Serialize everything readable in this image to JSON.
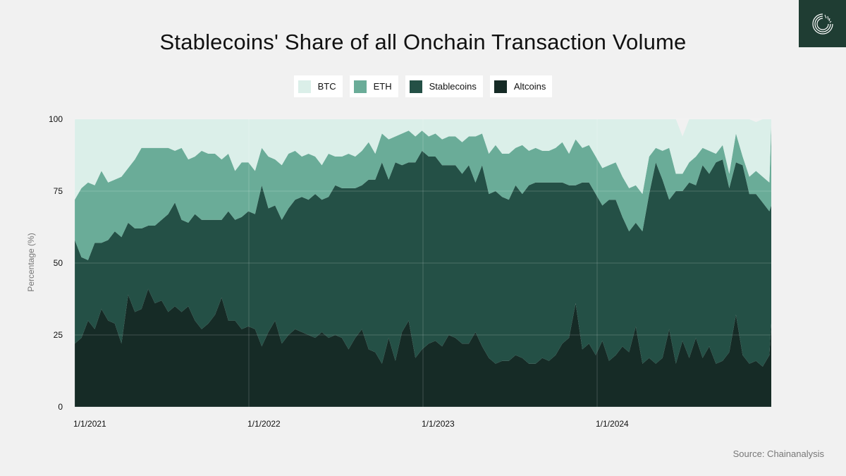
{
  "title": "Stablecoins' Share of all Onchain Transaction Volume",
  "source": "Source: Chainanalysis",
  "logo": {
    "icon": "chainalysis-logo-icon",
    "background": "#1f3d33"
  },
  "legend": [
    {
      "label": "BTC",
      "color": "#dbefe9"
    },
    {
      "label": "ETH",
      "color": "#6aac98"
    },
    {
      "label": "Stablecoins",
      "color": "#245046"
    },
    {
      "label": "Altcoins",
      "color": "#162b26"
    }
  ],
  "chart_data": {
    "type": "area",
    "stacked": true,
    "ylabel": "Percentage (%)",
    "ylim": [
      0,
      100
    ],
    "yticks": [
      "0",
      "25",
      "50",
      "75",
      "100"
    ],
    "xlim": [
      "2021-01-01",
      "2024-12-31"
    ],
    "xticks": [
      "1/1/2021",
      "1/1/2022",
      "1/1/2023",
      "1/1/2024"
    ],
    "grid": true,
    "x": [
      "2021-01-01",
      "2021-01-15",
      "2021-01-29",
      "2021-02-12",
      "2021-02-26",
      "2021-03-12",
      "2021-03-26",
      "2021-04-09",
      "2021-04-23",
      "2021-05-07",
      "2021-05-21",
      "2021-06-04",
      "2021-06-18",
      "2021-07-02",
      "2021-07-16",
      "2021-07-30",
      "2021-08-13",
      "2021-08-27",
      "2021-09-10",
      "2021-09-24",
      "2021-10-08",
      "2021-10-22",
      "2021-11-05",
      "2021-11-19",
      "2021-12-03",
      "2021-12-17",
      "2021-12-31",
      "2022-01-14",
      "2022-01-28",
      "2022-02-11",
      "2022-02-25",
      "2022-03-11",
      "2022-03-25",
      "2022-04-08",
      "2022-04-22",
      "2022-05-06",
      "2022-05-20",
      "2022-06-03",
      "2022-06-17",
      "2022-07-01",
      "2022-07-15",
      "2022-07-29",
      "2022-08-12",
      "2022-08-26",
      "2022-09-09",
      "2022-09-23",
      "2022-10-07",
      "2022-10-21",
      "2022-11-04",
      "2022-11-18",
      "2022-12-02",
      "2022-12-16",
      "2022-12-30",
      "2023-01-13",
      "2023-01-27",
      "2023-02-10",
      "2023-02-24",
      "2023-03-10",
      "2023-03-24",
      "2023-04-07",
      "2023-04-21",
      "2023-05-05",
      "2023-05-19",
      "2023-06-02",
      "2023-06-16",
      "2023-06-30",
      "2023-07-14",
      "2023-07-28",
      "2023-08-11",
      "2023-08-25",
      "2023-09-08",
      "2023-09-22",
      "2023-10-06",
      "2023-10-20",
      "2023-11-03",
      "2023-11-17",
      "2023-12-01",
      "2023-12-15",
      "2023-12-29",
      "2024-01-12",
      "2024-01-26",
      "2024-02-09",
      "2024-02-23",
      "2024-03-08",
      "2024-03-22",
      "2024-04-05",
      "2024-04-19",
      "2024-05-03",
      "2024-05-17",
      "2024-05-31",
      "2024-06-14",
      "2024-06-28",
      "2024-07-12",
      "2024-07-26",
      "2024-08-09",
      "2024-08-23",
      "2024-09-06",
      "2024-09-20",
      "2024-10-04",
      "2024-10-18",
      "2024-11-01",
      "2024-11-15",
      "2024-11-29",
      "2024-12-13",
      "2024-12-27",
      "2024-12-31"
    ],
    "series": [
      {
        "name": "Altcoins",
        "color": "#162b26",
        "values": [
          22,
          24,
          30,
          27,
          34,
          30,
          29,
          22,
          39,
          33,
          34,
          41,
          36,
          37,
          33,
          35,
          33,
          35,
          30,
          27,
          29,
          32,
          38,
          30,
          30,
          27,
          28,
          27,
          21,
          26,
          30,
          22,
          25,
          27,
          26,
          25,
          24,
          26,
          24,
          25,
          24,
          20,
          24,
          27,
          20,
          19,
          15,
          24,
          16,
          26,
          30,
          17,
          20,
          22,
          23,
          21,
          25,
          24,
          22,
          22,
          26,
          21,
          17,
          15,
          16,
          16,
          18,
          17,
          15,
          15,
          17,
          16,
          18,
          22,
          24,
          36,
          20,
          22,
          18,
          23,
          16,
          18,
          21,
          19,
          28,
          15,
          17,
          15,
          17,
          27,
          15,
          23,
          17,
          24,
          17,
          21,
          15,
          16,
          19,
          32,
          18,
          15,
          16,
          14,
          18,
          29
        ]
      },
      {
        "name": "Stablecoins",
        "color": "#245046",
        "values": [
          36,
          28,
          21,
          30,
          23,
          28,
          32,
          37,
          25,
          29,
          28,
          22,
          27,
          28,
          34,
          36,
          32,
          29,
          37,
          38,
          36,
          33,
          27,
          38,
          35,
          39,
          40,
          40,
          56,
          43,
          40,
          43,
          44,
          45,
          47,
          47,
          50,
          46,
          49,
          52,
          52,
          56,
          52,
          50,
          59,
          60,
          70,
          55,
          69,
          58,
          55,
          68,
          69,
          65,
          64,
          63,
          59,
          60,
          59,
          62,
          52,
          63,
          57,
          60,
          57,
          56,
          59,
          57,
          62,
          63,
          61,
          62,
          60,
          56,
          53,
          41,
          58,
          56,
          56,
          47,
          56,
          54,
          45,
          42,
          36,
          46,
          57,
          70,
          62,
          45,
          60,
          52,
          61,
          53,
          67,
          60,
          70,
          70,
          57,
          53,
          66,
          59,
          58,
          57,
          50,
          41
        ]
      },
      {
        "name": "ETH",
        "color": "#6aac98",
        "values": [
          14,
          24,
          27,
          20,
          25,
          20,
          18,
          21,
          19,
          24,
          28,
          27,
          27,
          25,
          23,
          18,
          25,
          22,
          20,
          24,
          23,
          23,
          21,
          20,
          17,
          19,
          17,
          15,
          13,
          18,
          16,
          19,
          19,
          17,
          14,
          16,
          13,
          12,
          15,
          10,
          11,
          12,
          11,
          12,
          13,
          9,
          10,
          14,
          9,
          11,
          11,
          9,
          7,
          7,
          8,
          9,
          10,
          10,
          11,
          10,
          16,
          11,
          14,
          16,
          15,
          16,
          13,
          17,
          12,
          12,
          11,
          11,
          12,
          14,
          11,
          16,
          12,
          13,
          13,
          13,
          12,
          13,
          14,
          15,
          13,
          13,
          13,
          5,
          10,
          18,
          6,
          6,
          7,
          10,
          6,
          8,
          3,
          5,
          5,
          10,
          3,
          6,
          8,
          9,
          10,
          28
        ]
      },
      {
        "name": "BTC",
        "color": "#dbefe9",
        "values": [
          28,
          24,
          22,
          23,
          18,
          22,
          21,
          20,
          17,
          14,
          10,
          10,
          10,
          10,
          10,
          11,
          10,
          14,
          13,
          11,
          12,
          12,
          14,
          12,
          18,
          15,
          15,
          18,
          10,
          13,
          14,
          16,
          12,
          11,
          13,
          12,
          13,
          16,
          12,
          13,
          13,
          12,
          13,
          11,
          8,
          12,
          5,
          7,
          6,
          5,
          4,
          6,
          4,
          6,
          5,
          7,
          6,
          6,
          8,
          6,
          6,
          5,
          12,
          9,
          12,
          12,
          10,
          9,
          11,
          10,
          11,
          11,
          10,
          8,
          12,
          7,
          10,
          9,
          13,
          17,
          16,
          15,
          20,
          24,
          23,
          26,
          13,
          10,
          11,
          10,
          19,
          13,
          15,
          13,
          10,
          11,
          12,
          9,
          19,
          5,
          13,
          20,
          17,
          20,
          22,
          2
        ]
      }
    ]
  }
}
